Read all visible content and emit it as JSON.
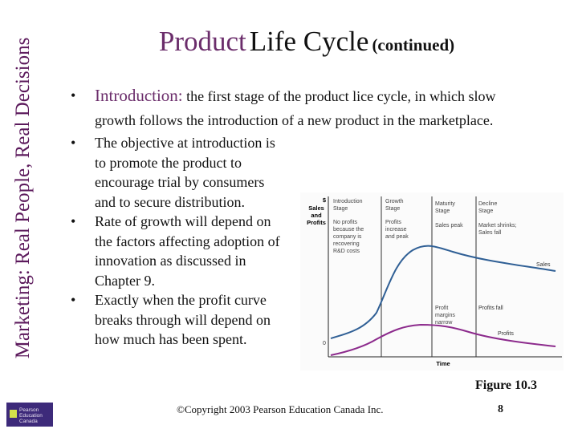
{
  "sidebar": {
    "title": "Marketing: Real People, Real Decisions"
  },
  "header": {
    "word1": "Product",
    "word2": "Life Cycle",
    "suffix": "(continued)"
  },
  "intro": {
    "bullet": "•",
    "label": "Introduction:",
    "text_line1": "the first stage of the product lice cycle, in which slow",
    "text_line2": "growth follows the introduction of a new product in the marketplace."
  },
  "bullets": [
    "The objective at introduction is to promote the product to encourage trial by consumers and to secure distribution.",
    "Rate of growth will depend on the factors affecting adoption of innovation as discussed in Chapter 9.",
    "Exactly when the profit curve breaks through will depend on how much has been spent."
  ],
  "figure": {
    "caption": "Figure 10.3",
    "ylabel": [
      "$",
      "Sales",
      "and",
      "Profits"
    ],
    "zero": "0",
    "xlabel": "Time",
    "stages": [
      {
        "title": [
          "Introduction",
          "Stage"
        ],
        "notes": [
          "No profits",
          "because the",
          "company is",
          "recovering",
          "R&D costs"
        ]
      },
      {
        "title": [
          "Growth",
          "Stage"
        ],
        "notes": [
          "Profits",
          "increase",
          "and peak"
        ]
      },
      {
        "title": [
          "Maturity",
          "Stage"
        ],
        "notes": [
          "Sales peak"
        ]
      },
      {
        "title": [
          "Decline",
          "Stage"
        ],
        "notes": [
          "Market shrinks;",
          "Sales fall"
        ]
      }
    ],
    "curve_labels": {
      "sales": "Sales",
      "profit_margins": [
        "Profit",
        "margins",
        "narrow"
      ],
      "profits_fall": "Profits fall",
      "profits": "Profits"
    },
    "colors": {
      "sales": "#2f5f95",
      "profits": "#8c2a8c",
      "divider": "#333333"
    }
  },
  "footer": {
    "copyright": "©Copyright 2003 Pearson Education Canada Inc.",
    "page": "8",
    "logo": [
      "Pearson",
      "Education",
      "Canada"
    ]
  }
}
